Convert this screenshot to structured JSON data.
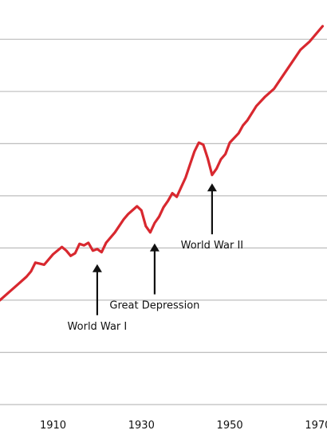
{
  "chart_data": {
    "type": "line",
    "title": "",
    "xlabel": "",
    "ylabel": "",
    "xlim": [
      1898,
      1972
    ],
    "ylim": [
      0,
      7.6
    ],
    "grid": true,
    "x_ticks": [
      1910,
      1930,
      1950,
      1970
    ],
    "x_tick_labels": [
      "1910",
      "1930",
      "1950",
      "1970"
    ],
    "series_color": "#d8282f",
    "series": [
      {
        "values_x": [
          1898,
          1900,
          1902,
          1904,
          1905,
          1906,
          1907,
          1908,
          1910,
          1912,
          1913,
          1914,
          1915,
          1916,
          1917,
          1918,
          1919,
          1920,
          1921,
          1922,
          1924,
          1926,
          1927,
          1929,
          1930,
          1931,
          1932,
          1933,
          1934,
          1935,
          1936,
          1937,
          1938,
          1940,
          1941,
          1942,
          1943,
          1944,
          1945,
          1946,
          1947,
          1948,
          1949,
          1950,
          1952,
          1953,
          1954,
          1956,
          1958,
          1960,
          1962,
          1964,
          1966,
          1968,
          1970,
          1971
        ],
        "values_y": [
          2.0,
          2.15,
          2.3,
          2.45,
          2.55,
          2.72,
          2.7,
          2.68,
          2.88,
          3.02,
          2.95,
          2.85,
          2.9,
          3.08,
          3.05,
          3.1,
          2.95,
          2.98,
          2.92,
          3.1,
          3.3,
          3.55,
          3.65,
          3.8,
          3.72,
          3.42,
          3.3,
          3.48,
          3.6,
          3.78,
          3.9,
          4.05,
          3.98,
          4.35,
          4.6,
          4.85,
          5.02,
          4.98,
          4.72,
          4.4,
          4.52,
          4.7,
          4.8,
          5.02,
          5.2,
          5.35,
          5.45,
          5.72,
          5.9,
          6.05,
          6.3,
          6.55,
          6.8,
          6.95,
          7.15,
          7.25
        ]
      }
    ],
    "annotations": [
      {
        "label": "World War I",
        "x": 1920,
        "y": 2.75
      },
      {
        "label": "Great Depression",
        "x": 1933,
        "y": 3.15
      },
      {
        "label": "World War II",
        "x": 1946,
        "y": 4.3
      }
    ]
  }
}
